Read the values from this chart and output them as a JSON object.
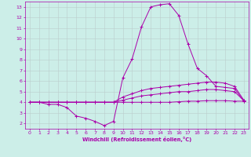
{
  "xlabel": "Windchill (Refroidissement éolien,°C)",
  "xlim": [
    -0.5,
    23.5
  ],
  "ylim": [
    1.5,
    13.5
  ],
  "xticks": [
    0,
    1,
    2,
    3,
    4,
    5,
    6,
    7,
    8,
    9,
    10,
    11,
    12,
    13,
    14,
    15,
    16,
    17,
    18,
    19,
    20,
    21,
    22,
    23
  ],
  "yticks": [
    2,
    3,
    4,
    5,
    6,
    7,
    8,
    9,
    10,
    11,
    12,
    13
  ],
  "bg_color": "#cceee8",
  "line_color": "#aa00aa",
  "grid_color": "#bbcccc",
  "lines": [
    {
      "x": [
        0,
        1,
        2,
        3,
        4,
        5,
        6,
        7,
        8,
        9,
        10,
        11,
        12,
        13,
        14,
        15,
        16,
        17,
        18,
        19,
        20,
        21,
        22,
        23
      ],
      "y": [
        4.0,
        4.0,
        3.8,
        3.8,
        3.5,
        2.7,
        2.5,
        2.2,
        1.8,
        2.2,
        6.3,
        8.1,
        11.1,
        13.0,
        13.2,
        13.3,
        12.2,
        9.5,
        7.2,
        6.5,
        5.5,
        5.4,
        5.3,
        4.1
      ]
    },
    {
      "x": [
        0,
        1,
        2,
        3,
        4,
        5,
        6,
        7,
        8,
        9,
        10,
        11,
        12,
        13,
        14,
        15,
        16,
        17,
        18,
        19,
        20,
        21,
        22,
        23
      ],
      "y": [
        4.0,
        4.0,
        4.0,
        4.0,
        4.0,
        4.0,
        4.0,
        4.0,
        4.0,
        4.0,
        4.5,
        4.8,
        5.1,
        5.3,
        5.4,
        5.5,
        5.6,
        5.7,
        5.8,
        5.9,
        5.9,
        5.8,
        5.5,
        4.2
      ]
    },
    {
      "x": [
        0,
        1,
        2,
        3,
        4,
        5,
        6,
        7,
        8,
        9,
        10,
        11,
        12,
        13,
        14,
        15,
        16,
        17,
        18,
        19,
        20,
        21,
        22,
        23
      ],
      "y": [
        4.0,
        4.0,
        4.0,
        4.0,
        4.0,
        4.0,
        4.0,
        4.0,
        4.0,
        4.0,
        4.2,
        4.4,
        4.6,
        4.7,
        4.8,
        4.9,
        5.0,
        5.0,
        5.1,
        5.2,
        5.2,
        5.1,
        5.0,
        4.15
      ]
    },
    {
      "x": [
        0,
        1,
        2,
        3,
        4,
        5,
        6,
        7,
        8,
        9,
        10,
        11,
        12,
        13,
        14,
        15,
        16,
        17,
        18,
        19,
        20,
        21,
        22,
        23
      ],
      "y": [
        4.0,
        4.0,
        4.0,
        4.0,
        4.0,
        4.0,
        4.0,
        4.0,
        4.0,
        4.0,
        4.0,
        4.0,
        4.0,
        4.0,
        4.0,
        4.0,
        4.05,
        4.1,
        4.1,
        4.15,
        4.15,
        4.15,
        4.1,
        4.1
      ]
    }
  ]
}
